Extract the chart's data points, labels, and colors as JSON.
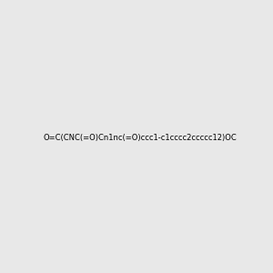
{
  "smiles": "O=C(CNC(=O)Cn1nc(=O)ccc1-c1cccc2ccccc12)OC",
  "image_size": 300,
  "background_color": "#e8e8e8",
  "bond_color": "#2d7a6b",
  "atom_colors": {
    "N": "#2222cc",
    "O": "#cc2222"
  },
  "title": ""
}
